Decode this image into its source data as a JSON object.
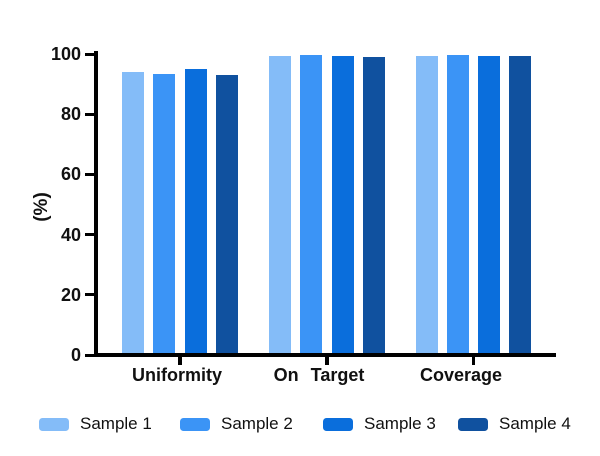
{
  "chart_data": {
    "type": "bar",
    "title": "",
    "xlabel": "",
    "ylabel": "(%)",
    "ylim": [
      0,
      100
    ],
    "yticks": [
      0,
      20,
      40,
      60,
      80,
      100
    ],
    "grid": false,
    "legend_position": "bottom",
    "categories": [
      "Uniformity",
      "On Target",
      "Coverage"
    ],
    "series": [
      {
        "name": "Sample 1",
        "color": "#84BCF8",
        "values": [
          94.0,
          99.5,
          99.5
        ]
      },
      {
        "name": "Sample 2",
        "color": "#3B94F6",
        "values": [
          93.5,
          99.7,
          99.8
        ]
      },
      {
        "name": "Sample 3",
        "color": "#0A6EDC",
        "values": [
          95.0,
          99.3,
          99.5
        ]
      },
      {
        "name": "Sample 4",
        "color": "#10519F",
        "values": [
          93.0,
          99.0,
          99.4
        ]
      }
    ],
    "axis_color": "#000000",
    "text_color": "#111111"
  }
}
